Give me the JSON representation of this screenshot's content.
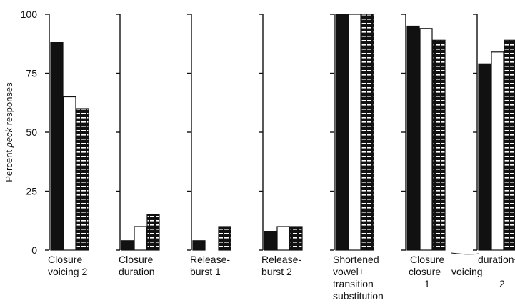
{
  "chart_data": {
    "type": "bar",
    "ylabel_parts": [
      "Percent ",
      "peck",
      " responses"
    ],
    "ylim": [
      0,
      100
    ],
    "yticks": [
      "0",
      "25",
      "50",
      "75",
      "100"
    ],
    "series_colors": [
      "#111111",
      "#ffffff",
      "#111111"
    ],
    "groups": [
      {
        "label_lines": [
          "Closure",
          "voicing 2"
        ],
        "values": [
          88,
          65,
          60
        ]
      },
      {
        "label_lines": [
          "Closure",
          "duration"
        ],
        "values": [
          4,
          10,
          15
        ]
      },
      {
        "label_lines": [
          "Release-",
          "burst 1"
        ],
        "values": [
          4,
          0,
          10
        ]
      },
      {
        "label_lines": [
          "Release-",
          "burst 2"
        ],
        "values": [
          8,
          10,
          10
        ]
      },
      {
        "label_lines": [
          "Shortened",
          "vowel+",
          "transition",
          "substitution"
        ],
        "values": [
          100,
          100,
          100
        ]
      },
      {
        "label_lines": [],
        "values": [
          95,
          94,
          89
        ]
      },
      {
        "label_lines": [],
        "values": [
          79,
          84,
          89
        ]
      }
    ],
    "combined_label": {
      "top": [
        "Closure",
        "duration+"
      ],
      "bottom": [
        "closure",
        "voicing"
      ],
      "numbers": [
        "1",
        "2"
      ]
    }
  }
}
